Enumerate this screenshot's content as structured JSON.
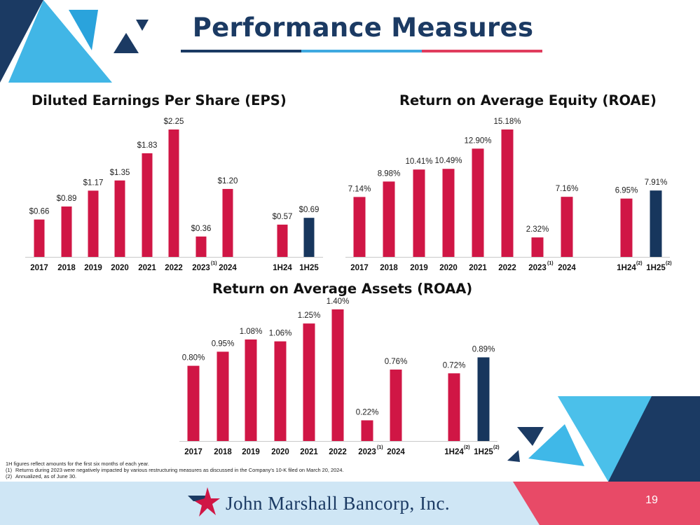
{
  "header": {
    "title": "Performance Measures",
    "bar_colors": [
      "#1b3a63",
      "#3fa9e0",
      "#e03c5d"
    ]
  },
  "colors": {
    "crimson": "#d01645",
    "navy": "#17365d",
    "dark_navy": "#1b3a63",
    "light_blue": "#3fb8e8",
    "sky": "#b4dcf2",
    "pink": "#e84a67",
    "footer_band": "#cfe6f5"
  },
  "chart_data": [
    {
      "id": "eps",
      "type": "bar",
      "title": "Diluted Earnings Per Share (EPS)",
      "categories": [
        "2017",
        "2018",
        "2019",
        "2020",
        "2021",
        "2022",
        "2023",
        "2024",
        "1H24",
        "1H25"
      ],
      "category_marks": [
        "",
        "",
        "",
        "",
        "",
        "",
        "(1)",
        "",
        "",
        ""
      ],
      "values": [
        0.66,
        0.89,
        1.17,
        1.35,
        1.83,
        2.25,
        0.36,
        1.2,
        0.57,
        0.69
      ],
      "labels": [
        "$0.66",
        "$0.89",
        "$1.17",
        "$1.35",
        "$1.83",
        "$2.25",
        "$0.36",
        "$1.20",
        "$0.57",
        "$0.69"
      ],
      "highlight": [
        "1H25"
      ],
      "ylim": [
        0,
        2.25
      ],
      "grid": false
    },
    {
      "id": "roae",
      "type": "bar",
      "title": "Return on Average Equity (ROAE)",
      "categories": [
        "2017",
        "2018",
        "2019",
        "2020",
        "2021",
        "2022",
        "2023",
        "2024",
        "1H24",
        "1H25"
      ],
      "category_marks": [
        "",
        "",
        "",
        "",
        "",
        "",
        "(1)",
        "",
        "(2)",
        "(2)"
      ],
      "values": [
        7.14,
        8.98,
        10.41,
        10.49,
        12.9,
        15.18,
        2.32,
        7.16,
        6.95,
        7.91
      ],
      "labels": [
        "7.14%",
        "8.98%",
        "10.41%",
        "10.49%",
        "12.90%",
        "15.18%",
        "2.32%",
        "7.16%",
        "6.95%",
        "7.91%"
      ],
      "highlight": [
        "1H25"
      ],
      "ylim": [
        0,
        15.18
      ],
      "grid": false
    },
    {
      "id": "roaa",
      "type": "bar",
      "title": "Return on Average Assets (ROAA)",
      "categories": [
        "2017",
        "2018",
        "2019",
        "2020",
        "2021",
        "2022",
        "2023",
        "2024",
        "1H24",
        "1H25"
      ],
      "category_marks": [
        "",
        "",
        "",
        "",
        "",
        "",
        "(1)",
        "",
        "(2)",
        "(2)"
      ],
      "values": [
        0.8,
        0.95,
        1.08,
        1.06,
        1.25,
        1.4,
        0.22,
        0.76,
        0.72,
        0.89
      ],
      "labels": [
        "0.80%",
        "0.95%",
        "1.08%",
        "1.06%",
        "1.25%",
        "1.40%",
        "0.22%",
        "0.76%",
        "0.72%",
        "0.89%"
      ],
      "highlight": [
        "1H25"
      ],
      "ylim": [
        0,
        1.4
      ],
      "grid": false
    }
  ],
  "footnotes": [
    {
      "mark": "",
      "text": "1H figures reflect amounts for the first six months of each year."
    },
    {
      "mark": "(1)",
      "text": "Returns during 2023 were negatively impacted by various restructuring measures as discussed in the Company's 10-K filed on March 20, 2024."
    },
    {
      "mark": "(2)",
      "text": "Annualized, as of June 30."
    }
  ],
  "footer": {
    "company_name": "John Marshall Bancorp, Inc.",
    "page_number": "19"
  }
}
